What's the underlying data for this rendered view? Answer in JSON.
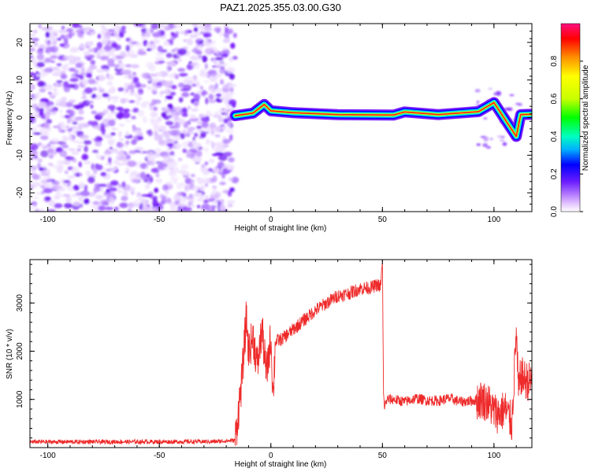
{
  "colors": {
    "snr_line": "#ee2a2a",
    "background": "#ffffff",
    "frame": "#000000",
    "noise_purple": "#7b1cff",
    "colorscale": [
      "#ffffff",
      "#e6c8ff",
      "#b57dff",
      "#6a1cff",
      "#0000ff",
      "#00b0ff",
      "#00ffc0",
      "#00ff00",
      "#c8ff00",
      "#ffff00",
      "#ff9000",
      "#ff0000",
      "#ff1080"
    ]
  },
  "chart_data": [
    {
      "type": "heatmap",
      "title": "PAZ1.2025.355.03.00.G30",
      "xlabel": "Height of straight line (km)",
      "ylabel": "Frequency (Hz)",
      "xlim": [
        -108,
        117
      ],
      "ylim": [
        -25,
        25
      ],
      "xticks": [
        -100,
        -50,
        0,
        50,
        100
      ],
      "yticks": [
        -20,
        -10,
        0,
        10,
        20
      ],
      "colorbar": {
        "label": "Normalized spectral amplitude",
        "range": [
          0,
          1
        ],
        "ticks": [
          0.0,
          0.2,
          0.4,
          0.6,
          0.8
        ]
      },
      "features": {
        "noise_region_x": [
          -108,
          -16
        ],
        "signal_start_x": -16,
        "carrier_line": [
          {
            "x": -16,
            "freq": 0.5
          },
          {
            "x": -8,
            "freq": 1.2
          },
          {
            "x": -3,
            "freq": 3.5
          },
          {
            "x": 0,
            "freq": 1.8
          },
          {
            "x": 10,
            "freq": 1.3
          },
          {
            "x": 30,
            "freq": 0.8
          },
          {
            "x": 55,
            "freq": 0.7
          },
          {
            "x": 60,
            "freq": 1.5
          },
          {
            "x": 75,
            "freq": 0.8
          },
          {
            "x": 93,
            "freq": 1.6
          },
          {
            "x": 100,
            "freq": 4.0
          },
          {
            "x": 105,
            "freq": -0.5
          },
          {
            "x": 110,
            "freq": -5.0
          },
          {
            "x": 112,
            "freq": 0.8
          },
          {
            "x": 117,
            "freq": 0.9
          }
        ]
      }
    },
    {
      "type": "line",
      "xlabel": "Height of straight line (km)",
      "ylabel": "SNR (10 * v/v)",
      "xlim": [
        -108,
        117
      ],
      "ylim": [
        0,
        3900
      ],
      "xticks": [
        -100,
        -50,
        0,
        50,
        100
      ],
      "yticks": [
        1000,
        2000,
        3000
      ],
      "series": [
        {
          "name": "SNR",
          "x": [
            -108,
            -60,
            -25,
            -16,
            -13,
            -11,
            -10,
            -8,
            -6,
            -4,
            -2,
            0,
            1,
            2,
            5,
            10,
            15,
            20,
            25,
            30,
            35,
            40,
            45,
            48,
            49,
            50,
            50.5,
            51,
            52,
            55,
            60,
            65,
            70,
            75,
            80,
            85,
            90,
            95,
            98,
            100,
            102,
            105,
            108,
            110,
            111,
            112,
            114,
            117
          ],
          "y": [
            120,
            120,
            125,
            150,
            1400,
            2700,
            2000,
            2300,
            1700,
            2450,
            1500,
            2300,
            1050,
            2200,
            2250,
            2450,
            2650,
            2850,
            3000,
            3150,
            3200,
            3300,
            3320,
            3380,
            3300,
            3820,
            1050,
            850,
            1000,
            1000,
            950,
            1020,
            980,
            970,
            1020,
            950,
            970,
            1000,
            900,
            750,
            700,
            800,
            500,
            2400,
            1100,
            1500,
            1400,
            1350
          ]
        }
      ]
    }
  ]
}
